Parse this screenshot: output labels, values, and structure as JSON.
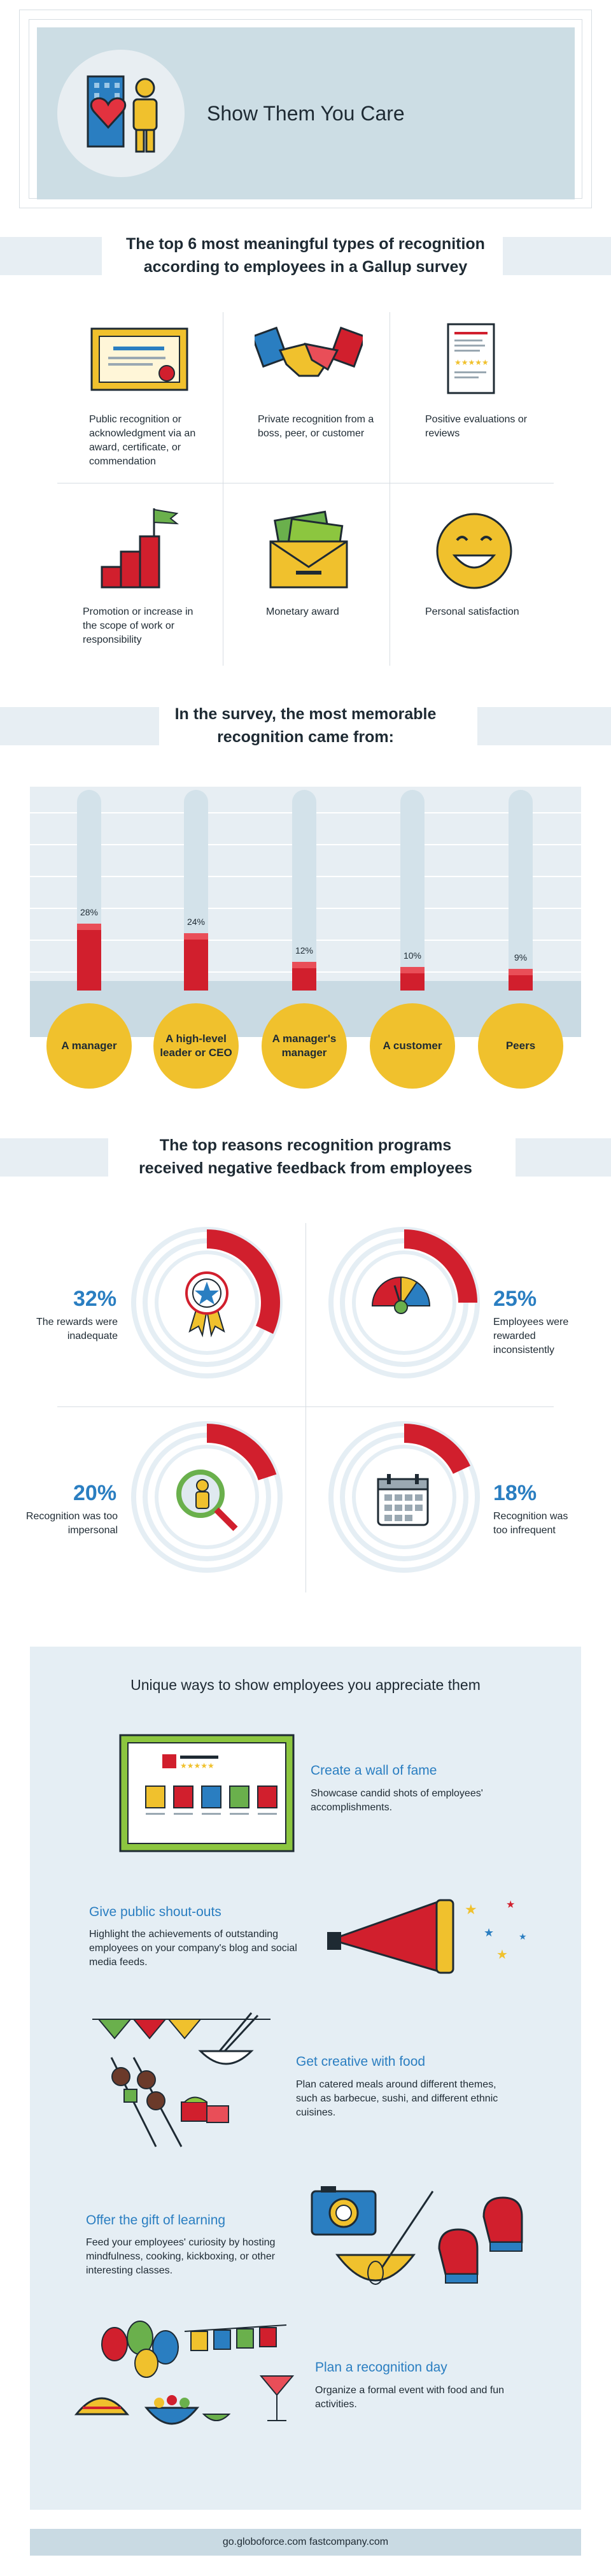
{
  "header": {
    "title": "Show Them You Care"
  },
  "section1": {
    "title_line1": "The top 6 most meaningful types of recognition",
    "title_line2": "according to employees in a Gallup survey",
    "items": [
      {
        "icon": "certificate-icon",
        "label": "Public recognition or acknowledgment via an award, certificate, or commendation"
      },
      {
        "icon": "handshake-icon",
        "label": "Private recognition from a boss, peer, or customer"
      },
      {
        "icon": "review-document-icon",
        "label": "Positive evaluations or reviews"
      },
      {
        "icon": "stairs-flag-icon",
        "label": "Promotion or increase in the scope of work or responsibility"
      },
      {
        "icon": "money-envelope-icon",
        "label": "Monetary award"
      },
      {
        "icon": "smiley-icon",
        "label": "Personal satisfaction"
      }
    ]
  },
  "section2": {
    "title_line1": "In the survey, the most memorable",
    "title_line2": "recognition came from:"
  },
  "chart_data": {
    "type": "bar",
    "categories": [
      "A manager",
      "A high-level leader or CEO",
      "A manager's manager",
      "A customer",
      "Peers"
    ],
    "values": [
      28,
      24,
      12,
      10,
      9
    ],
    "value_labels": [
      "28%",
      "24%",
      "12%",
      "10%",
      "9%"
    ],
    "ylim": [
      0,
      100
    ],
    "colors": {
      "bar": "#d11f2d",
      "category_circle": "#f0c12d"
    }
  },
  "section3": {
    "title_line1": "The top reasons recognition programs",
    "title_line2": "received negative feedback from employees",
    "items": [
      {
        "pct": "32%",
        "value": 32,
        "label": "The rewards were inadequate",
        "icon": "award-ribbon-icon"
      },
      {
        "pct": "25%",
        "value": 25,
        "label": "Employees were rewarded inconsistently",
        "icon": "gauge-icon"
      },
      {
        "pct": "20%",
        "value": 20,
        "label": "Recognition was too impersonal",
        "icon": "magnifier-person-icon"
      },
      {
        "pct": "18%",
        "value": 18,
        "label": "Recognition was too infrequent",
        "icon": "calendar-icon"
      }
    ],
    "colors": {
      "accent": "#d11f2d",
      "track": "#e5eef4",
      "pct": "#2a7ec1"
    }
  },
  "section4": {
    "title": "Unique ways to show employees you appreciate them",
    "ideas": [
      {
        "heading": "Create a wall of fame",
        "text": "Showcase candid shots of employees' accomplishments.",
        "icon": "wall-of-fame-icon"
      },
      {
        "heading": "Give public shout-outs",
        "text": "Highlight the achievements of outstanding employees on your company's blog and social media feeds.",
        "icon": "megaphone-icon"
      },
      {
        "heading": "Get creative with food",
        "text": "Plan catered meals around different themes, such as barbecue, sushi, and different ethnic cuisines.",
        "icon": "food-icon"
      },
      {
        "heading": "Offer the gift of learning",
        "text": "Feed your employees' curiosity by hosting mindfulness, cooking, kickboxing, or other interesting classes.",
        "icon": "learning-icon"
      },
      {
        "heading": "Plan a recognition day",
        "text": "Organize a formal event with food and fun activities.",
        "icon": "party-icon"
      }
    ]
  },
  "footer": {
    "text": "go.globoforce.com   fastcompany.com"
  }
}
